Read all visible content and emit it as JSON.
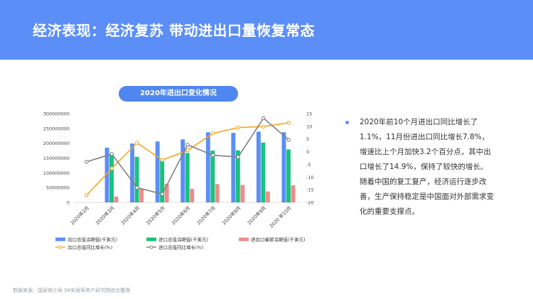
{
  "header": {
    "title": "经济表现：经济复苏 带动进出口量恢复常态"
  },
  "chart_title": "2020年进出口变化情况",
  "colors": {
    "header_bg": "#5b8ef7",
    "export_bar": "#5b8ef7",
    "import_bar": "#18c27b",
    "balance_bar": "#f08c8c",
    "export_yoy_line": "#f4a71a",
    "import_yoy_line": "#808080"
  },
  "chart_data": {
    "type": "bar",
    "categories": [
      "2020年2月",
      "2020年3月",
      "2020年4月",
      "2020年5月",
      "2020年6月",
      "2020年7月",
      "2020年8月",
      "2020年9月",
      "2020 年10月"
    ],
    "series": [
      {
        "name": "出口总值当期值(千美元)",
        "kind": "bar",
        "axis": "left",
        "values": [
          null,
          185000000,
          199000000,
          206000000,
          213000000,
          237000000,
          235000000,
          239000000,
          237000000
        ]
      },
      {
        "name": "进口总值当期值(千美元)",
        "kind": "bar",
        "axis": "left",
        "values": [
          null,
          165000000,
          154000000,
          143000000,
          167000000,
          175000000,
          176000000,
          202000000,
          179000000
        ]
      },
      {
        "name": "进出口差额当期值(千美元)",
        "kind": "bar",
        "axis": "left",
        "values": [
          null,
          20000000,
          45000000,
          63000000,
          46000000,
          62000000,
          59000000,
          37000000,
          58000000
        ]
      },
      {
        "name": "出口总值同比增长(%)",
        "kind": "line",
        "axis": "right",
        "values": [
          -17.2,
          -6.6,
          3.5,
          -3.3,
          0.5,
          7.2,
          9.5,
          9.9,
          11.4
        ]
      },
      {
        "name": "进口总值同比增长(%)",
        "kind": "line",
        "axis": "right",
        "values": [
          -4.0,
          -0.9,
          -14.2,
          -16.7,
          2.7,
          -1.4,
          -2.1,
          13.2,
          4.7
        ]
      }
    ],
    "left_axis": {
      "ticks": [
        0,
        50000000,
        100000000,
        150000000,
        200000000,
        250000000,
        300000000
      ],
      "range": [
        0,
        300000000
      ]
    },
    "right_axis": {
      "ticks": [
        -20,
        -15,
        -10,
        -5,
        0,
        5,
        10,
        15
      ],
      "range": [
        -20,
        15
      ]
    },
    "legend_position": "bottom"
  },
  "bullet": {
    "text": "2020年前10个月进出口同比增长了1.1%，11月份进出口同比增长7.8%，增速比上个月加快3.2个百分点，其中出口增长了14.9%，保持了较快的增长。随着中国的复工复产，经济运行逐步改善，生产保持稳定是中国面对外部需求变化的重要支撑点。"
  },
  "source": "数据来源：国家统计局 58安居客房产研究院综合整理"
}
